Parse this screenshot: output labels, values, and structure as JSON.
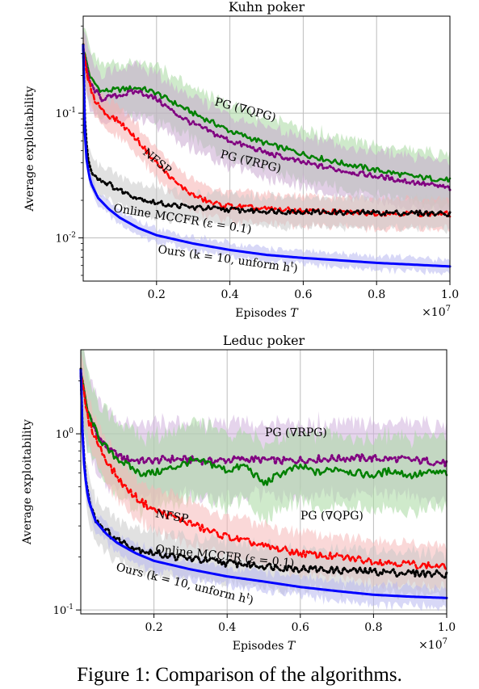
{
  "caption": "Figure 1: Comparison of the algorithms.",
  "chart_data": [
    {
      "type": "line",
      "title": "Kuhn poker",
      "xlabel": "Episodes T",
      "ylabel": "Average exploitability",
      "x_multiplier_label": "×10^7",
      "yscale": "log",
      "xlim": [
        0,
        1.0
      ],
      "ylim": [
        0.0045,
        0.6
      ],
      "x_ticks": [
        "0.2",
        "0.4",
        "0.6",
        "0.8",
        "1.0"
      ],
      "y_ticks": [
        {
          "value": 0.1,
          "label": "10^-1"
        },
        {
          "value": 0.01,
          "label": "10^-2"
        }
      ],
      "grid": true,
      "series": [
        {
          "name": "PG (∇QPG)",
          "color": "#008000",
          "style": "dashdot",
          "band": "#a8d8a0",
          "x": [
            0,
            0.02,
            0.05,
            0.1,
            0.15,
            0.2,
            0.25,
            0.3,
            0.35,
            0.4,
            0.5,
            0.6,
            0.7,
            0.8,
            0.9,
            0.95,
            1.0
          ],
          "y": [
            0.33,
            0.19,
            0.15,
            0.155,
            0.16,
            0.145,
            0.12,
            0.1,
            0.085,
            0.072,
            0.057,
            0.047,
            0.04,
            0.035,
            0.031,
            0.03,
            0.029
          ]
        },
        {
          "name": "PG (∇RPG)",
          "color": "#800080",
          "style": "dotted",
          "band": "#c8a8d0",
          "x": [
            0,
            0.02,
            0.05,
            0.1,
            0.15,
            0.2,
            0.25,
            0.3,
            0.35,
            0.4,
            0.5,
            0.6,
            0.7,
            0.8,
            0.9,
            1.0
          ],
          "y": [
            0.3,
            0.17,
            0.13,
            0.14,
            0.15,
            0.13,
            0.1,
            0.082,
            0.07,
            0.06,
            0.048,
            0.04,
            0.035,
            0.031,
            0.028,
            0.025
          ]
        },
        {
          "name": "NFSP",
          "color": "#ff0000",
          "style": "dashed",
          "band": "#f5b0b0",
          "x": [
            0,
            0.01,
            0.03,
            0.06,
            0.1,
            0.15,
            0.2,
            0.25,
            0.3,
            0.35,
            0.4,
            0.5,
            0.6,
            0.7,
            0.8,
            0.9,
            1.0
          ],
          "y": [
            0.33,
            0.2,
            0.13,
            0.1,
            0.085,
            0.06,
            0.04,
            0.028,
            0.022,
            0.019,
            0.018,
            0.017,
            0.0165,
            0.016,
            0.0158,
            0.0157,
            0.0155
          ]
        },
        {
          "name": "Online MCCFR (ε = 0.1)",
          "color": "#000000",
          "style": "dotted",
          "band": "#c8c8c8",
          "x": [
            0,
            0.005,
            0.01,
            0.02,
            0.04,
            0.07,
            0.1,
            0.15,
            0.2,
            0.3,
            0.4,
            0.5,
            0.6,
            0.7,
            0.8,
            0.9,
            1.0
          ],
          "y": [
            0.35,
            0.08,
            0.05,
            0.035,
            0.03,
            0.027,
            0.024,
            0.021,
            0.019,
            0.0175,
            0.0168,
            0.0164,
            0.0162,
            0.016,
            0.0159,
            0.0158,
            0.0157
          ]
        },
        {
          "name": "Ours (k = 10, unform h^t)",
          "color": "#0000ff",
          "style": "solid",
          "band": "#b8b8f0",
          "x": [
            0,
            0.005,
            0.01,
            0.02,
            0.04,
            0.07,
            0.1,
            0.15,
            0.2,
            0.3,
            0.4,
            0.5,
            0.6,
            0.7,
            0.8,
            0.9,
            1.0
          ],
          "y": [
            0.35,
            0.06,
            0.04,
            0.028,
            0.021,
            0.017,
            0.0145,
            0.012,
            0.0105,
            0.009,
            0.008,
            0.0073,
            0.0069,
            0.0066,
            0.0063,
            0.0061,
            0.0059
          ]
        }
      ],
      "annotations": [
        "PG (∇QPG)",
        "PG (∇RPG)",
        "NFSP",
        "Online MCCFR (ε = 0.1)",
        "Ours (k = 10, unform h^t)"
      ]
    },
    {
      "type": "line",
      "title": "Leduc poker",
      "xlabel": "Episodes T",
      "ylabel": "Average exploitability",
      "x_multiplier_label": "×10^7",
      "yscale": "log",
      "xlim": [
        0,
        1.0
      ],
      "ylim": [
        0.095,
        3.0
      ],
      "x_ticks": [
        "0.2",
        "0.4",
        "0.6",
        "0.8",
        "1.0"
      ],
      "y_ticks": [
        {
          "value": 1.0,
          "label": "10^0"
        },
        {
          "value": 0.1,
          "label": "10^-1"
        }
      ],
      "grid": true,
      "series": [
        {
          "name": "PG (∇RPG)",
          "color": "#800080",
          "style": "dotted",
          "band": "#d0b0dc",
          "x": [
            0,
            0.02,
            0.05,
            0.08,
            0.12,
            0.18,
            0.25,
            0.35,
            0.45,
            0.55,
            0.65,
            0.75,
            0.85,
            0.95,
            1.0
          ],
          "y": [
            2.2,
            1.3,
            0.95,
            0.8,
            0.72,
            0.7,
            0.72,
            0.7,
            0.72,
            0.7,
            0.72,
            0.73,
            0.72,
            0.7,
            0.68
          ]
        },
        {
          "name": "PG (∇QPG)",
          "color": "#008000",
          "style": "dashdot",
          "band": "#a8d8a0",
          "x": [
            0,
            0.02,
            0.05,
            0.08,
            0.12,
            0.16,
            0.2,
            0.25,
            0.3,
            0.35,
            0.4,
            0.45,
            0.5,
            0.55,
            0.6,
            0.65,
            0.7,
            0.75,
            0.8,
            0.85,
            0.9,
            0.95,
            1.0
          ],
          "y": [
            2.2,
            1.3,
            0.95,
            0.78,
            0.68,
            0.6,
            0.6,
            0.64,
            0.7,
            0.68,
            0.62,
            0.66,
            0.52,
            0.6,
            0.65,
            0.6,
            0.64,
            0.6,
            0.58,
            0.62,
            0.58,
            0.6,
            0.6
          ]
        },
        {
          "name": "NFSP",
          "color": "#ff0000",
          "style": "dashed",
          "band": "#f5b8b8",
          "x": [
            0,
            0.02,
            0.05,
            0.08,
            0.12,
            0.16,
            0.2,
            0.25,
            0.3,
            0.35,
            0.4,
            0.5,
            0.6,
            0.7,
            0.8,
            0.9,
            1.0
          ],
          "y": [
            2.2,
            1.2,
            0.85,
            0.65,
            0.5,
            0.42,
            0.37,
            0.34,
            0.31,
            0.28,
            0.26,
            0.23,
            0.21,
            0.2,
            0.19,
            0.182,
            0.175
          ]
        },
        {
          "name": "Online MCCFR (ε = 0.1)",
          "color": "#000000",
          "style": "dotted",
          "band": "#c8c8c8",
          "x": [
            0,
            0.005,
            0.01,
            0.02,
            0.04,
            0.07,
            0.1,
            0.15,
            0.2,
            0.3,
            0.4,
            0.5,
            0.6,
            0.7,
            0.8,
            0.9,
            1.0
          ],
          "y": [
            2.3,
            1.0,
            0.65,
            0.45,
            0.33,
            0.28,
            0.25,
            0.225,
            0.21,
            0.195,
            0.185,
            0.178,
            0.172,
            0.168,
            0.165,
            0.162,
            0.16
          ]
        },
        {
          "name": "Ours (k = 10, unform h^t)",
          "color": "#0000ff",
          "style": "solid",
          "band": "#b8b8f0",
          "x": [
            0,
            0.005,
            0.01,
            0.02,
            0.04,
            0.07,
            0.1,
            0.15,
            0.2,
            0.3,
            0.4,
            0.5,
            0.6,
            0.7,
            0.8,
            0.9,
            1.0
          ],
          "y": [
            2.3,
            0.95,
            0.62,
            0.43,
            0.32,
            0.27,
            0.24,
            0.21,
            0.19,
            0.17,
            0.155,
            0.145,
            0.135,
            0.128,
            0.122,
            0.119,
            0.117
          ]
        }
      ],
      "annotations": [
        "PG (∇RPG)",
        "PG (∇QPG)",
        "NFSP",
        "Online MCCFR (ε = 0.1)",
        "Ours (k = 10, unform h^t)"
      ]
    }
  ]
}
